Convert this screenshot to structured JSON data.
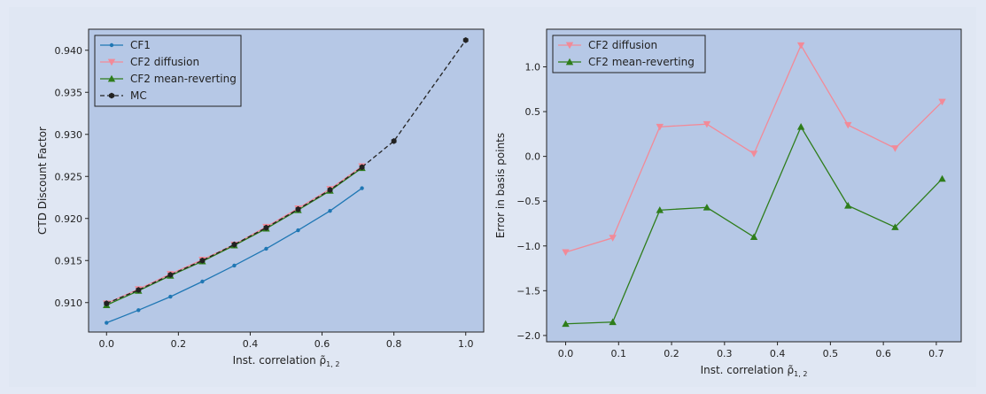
{
  "colors": {
    "page_bg": "#e3e9f5",
    "axes_bg": "#b6c8e6",
    "cf1": "#1f77b4",
    "cf2_diffusion": "#f28a98",
    "cf2_mean_reverting": "#2e7d1b",
    "mc": "#222222"
  },
  "chart_data": [
    {
      "type": "line",
      "xlabel": "Inst. correlation ρ̃",
      "xlabel_sub": "1, 2",
      "ylabel": "CTD Discount Factor",
      "xlim": [
        -0.05,
        1.05
      ],
      "ylim": [
        0.9065,
        0.9425
      ],
      "xticks": [
        0.0,
        0.2,
        0.4,
        0.6,
        0.8,
        1.0
      ],
      "xtick_labels": [
        "0.0",
        "0.2",
        "0.4",
        "0.6",
        "0.8",
        "1.0"
      ],
      "yticks": [
        0.91,
        0.915,
        0.92,
        0.925,
        0.93,
        0.935,
        0.94
      ],
      "ytick_labels": [
        "0.910",
        "0.915",
        "0.920",
        "0.925",
        "0.930",
        "0.935",
        "0.940"
      ],
      "legend_position": "top-left",
      "series": [
        {
          "name": "CF1",
          "color": "#1f77b4",
          "marker": "circle-small",
          "dash": "solid",
          "x": [
            0.0,
            0.0889,
            0.1778,
            0.2667,
            0.3556,
            0.4444,
            0.5333,
            0.6222,
            0.7111
          ],
          "y": [
            0.9076,
            0.9091,
            0.9107,
            0.9125,
            0.9144,
            0.9164,
            0.9186,
            0.9209,
            0.9236
          ]
        },
        {
          "name": "CF2 diffusion",
          "color": "#f28a98",
          "marker": "triangle-down",
          "dash": "solid",
          "x": [
            0.0,
            0.0889,
            0.1778,
            0.2667,
            0.3556,
            0.4444,
            0.5333,
            0.6222,
            0.7111
          ],
          "y": [
            0.9099,
            0.9116,
            0.9134,
            0.9151,
            0.9169,
            0.919,
            0.9212,
            0.9235,
            0.9262
          ]
        },
        {
          "name": "CF2 mean-reverting",
          "color": "#2e7d1b",
          "marker": "triangle-up",
          "dash": "solid",
          "x": [
            0.0,
            0.0889,
            0.1778,
            0.2667,
            0.3556,
            0.4444,
            0.5333,
            0.6222,
            0.7111
          ],
          "y": [
            0.9097,
            0.9114,
            0.9132,
            0.9149,
            0.9168,
            0.9188,
            0.921,
            0.9233,
            0.926
          ]
        },
        {
          "name": "MC",
          "color": "#222222",
          "marker": "hexagon",
          "dash": "dashed",
          "x": [
            0.0,
            0.0889,
            0.1778,
            0.2667,
            0.3556,
            0.4444,
            0.5333,
            0.6222,
            0.7111,
            0.8,
            1.0
          ],
          "y": [
            0.9099,
            0.9115,
            0.9133,
            0.915,
            0.9169,
            0.9189,
            0.9211,
            0.9234,
            0.9261,
            0.9292,
            0.9412
          ]
        }
      ]
    },
    {
      "type": "line",
      "xlabel": "Inst. correlation ρ̃",
      "xlabel_sub": "1, 2",
      "ylabel": "Error in basis points",
      "xlim": [
        -0.036,
        0.747
      ],
      "ylim": [
        -2.07,
        1.42
      ],
      "xticks": [
        0.0,
        0.1,
        0.2,
        0.3,
        0.4,
        0.5,
        0.6,
        0.7
      ],
      "xtick_labels": [
        "0.0",
        "0.1",
        "0.2",
        "0.3",
        "0.4",
        "0.5",
        "0.6",
        "0.7"
      ],
      "yticks": [
        -2.0,
        -1.5,
        -1.0,
        -0.5,
        0.0,
        0.5,
        1.0
      ],
      "ytick_labels": [
        "−2.0",
        "−1.5",
        "−1.0",
        "−0.5",
        "0.0",
        "0.5",
        "1.0"
      ],
      "legend_position": "top-left",
      "series": [
        {
          "name": "CF2 diffusion",
          "color": "#f28a98",
          "marker": "triangle-down",
          "dash": "solid",
          "x": [
            0.0,
            0.0889,
            0.1778,
            0.2667,
            0.3556,
            0.4444,
            0.5333,
            0.6222,
            0.7111
          ],
          "y": [
            -1.07,
            -0.91,
            0.33,
            0.36,
            0.03,
            1.24,
            0.35,
            0.09,
            0.61
          ]
        },
        {
          "name": "CF2 mean-reverting",
          "color": "#2e7d1b",
          "marker": "triangle-up",
          "dash": "solid",
          "x": [
            0.0,
            0.0889,
            0.1778,
            0.2667,
            0.3556,
            0.4444,
            0.5333,
            0.6222,
            0.7111
          ],
          "y": [
            -1.87,
            -1.85,
            -0.6,
            -0.57,
            -0.9,
            0.33,
            -0.55,
            -0.79,
            -0.25
          ]
        }
      ]
    }
  ]
}
